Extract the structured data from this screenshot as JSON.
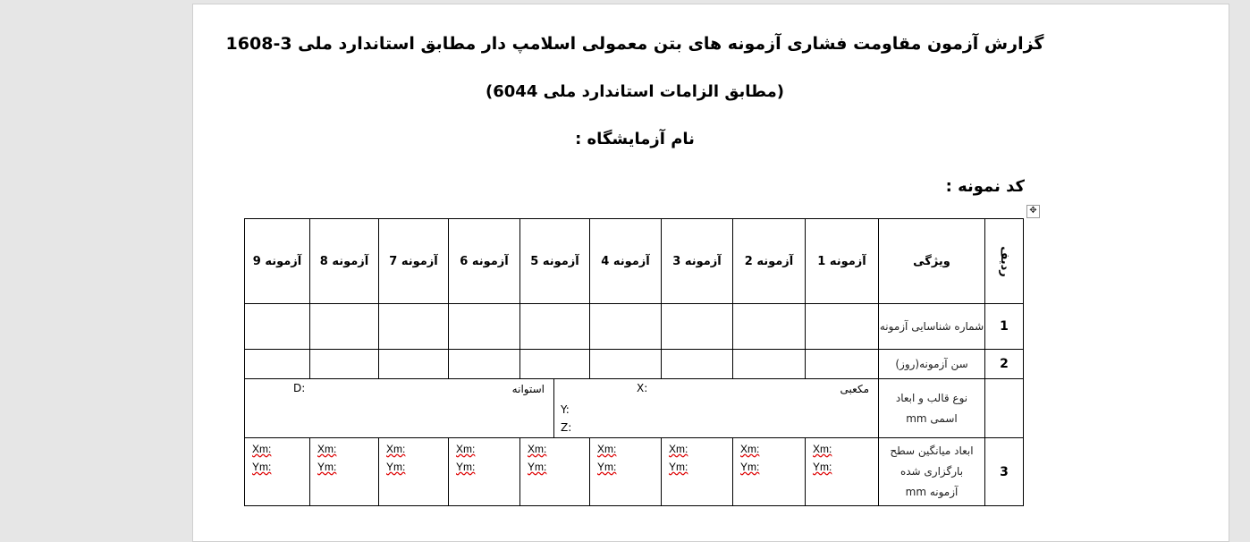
{
  "document": {
    "title": "گزارش آزمون مقاومت فشاری آزمونه های بتن معمولی اسلامپ دار مطابق استاندارد ملی 3-1608",
    "subtitle": "(مطابق الزامات استاندارد ملی 6044)",
    "lab_name_label": "نام آزمایشگاه :",
    "sample_code_label": "کد نمونه :"
  },
  "table": {
    "headers": {
      "row": "ردیف",
      "property": "ویژگی",
      "tests": [
        "آزمونه 1",
        "آزمونه 2",
        "آزمونه 3",
        "آزمونه 4",
        "آزمونه 5",
        "آزمونه 6",
        "آزمونه 7",
        "آزمونه 8",
        "آزمونه 9"
      ]
    },
    "rows": [
      {
        "num": "1",
        "label": "شماره شناسایی آزمونه"
      },
      {
        "num": "2",
        "label": "سن آزمونه(روز)"
      },
      {
        "num": "",
        "label": "نوع قالب و ابعاد اسمی mm",
        "cube_label": "مکعبی",
        "cube_x": "X:",
        "cube_y": "Y:",
        "cube_z": "Z:",
        "cyl_label": "استوانه",
        "cyl_d": "D:"
      },
      {
        "num": "3",
        "label": "ابعاد میانگین سطح بارگزاری شده آزمونه mm",
        "xm": "Xm:",
        "ym": "Ym:"
      }
    ]
  },
  "icons": {
    "table_move": "move-handle-icon"
  }
}
